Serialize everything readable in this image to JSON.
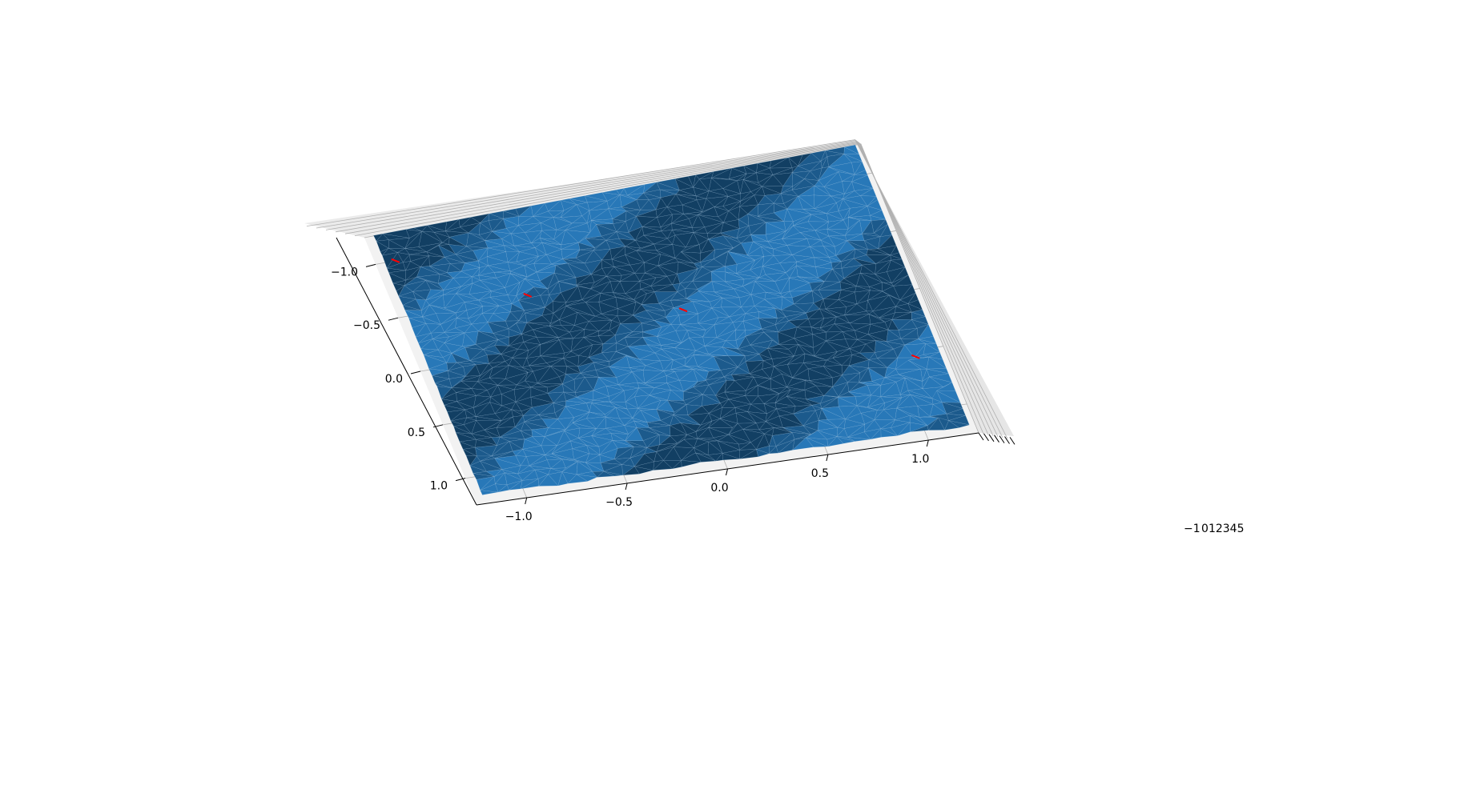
{
  "chart_data": {
    "type": "surface3d",
    "title": "",
    "xlabel": "",
    "ylabel": "",
    "zlabel": "",
    "x_axis": {
      "ticks": [
        -1.0,
        -0.5,
        0.0,
        0.5,
        1.0
      ],
      "tick_labels": [
        "−1.0",
        "−0.5",
        "0.0",
        "0.5",
        "1.0"
      ]
    },
    "y_axis": {
      "ticks": [
        -1.0,
        -0.5,
        0.0,
        0.5,
        1.0
      ],
      "tick_labels": [
        "−1.0",
        "−0.5",
        "0.0",
        "0.5",
        "1.0"
      ]
    },
    "z_axis": {
      "ticks": [
        -1,
        0,
        1,
        2,
        3,
        4,
        5
      ],
      "tick_labels": [
        "−1",
        "0",
        "1",
        "2",
        "3",
        "4",
        "5"
      ]
    },
    "xlim": [
      -1.25,
      1.25
    ],
    "ylim": [
      -1.25,
      1.25
    ],
    "zlim": [
      -1,
      5
    ],
    "surface": {
      "description": "noisy triangulated surface with diagonal wave stripes",
      "colors": {
        "light": "#2878b8",
        "mid": "#1c5a8c",
        "dark": "#123f63",
        "mesh": "#9fc3e3"
      }
    },
    "markers": {
      "color": "#ff0000",
      "points": [
        {
          "x": -1.15,
          "y": -1.0
        },
        {
          "x": -0.6,
          "y": -0.5
        },
        {
          "x": 0.1,
          "y": -0.15
        },
        {
          "x": 1.1,
          "y": 0.55
        }
      ]
    },
    "grid": true,
    "pane_color": "#f2f2f2"
  }
}
